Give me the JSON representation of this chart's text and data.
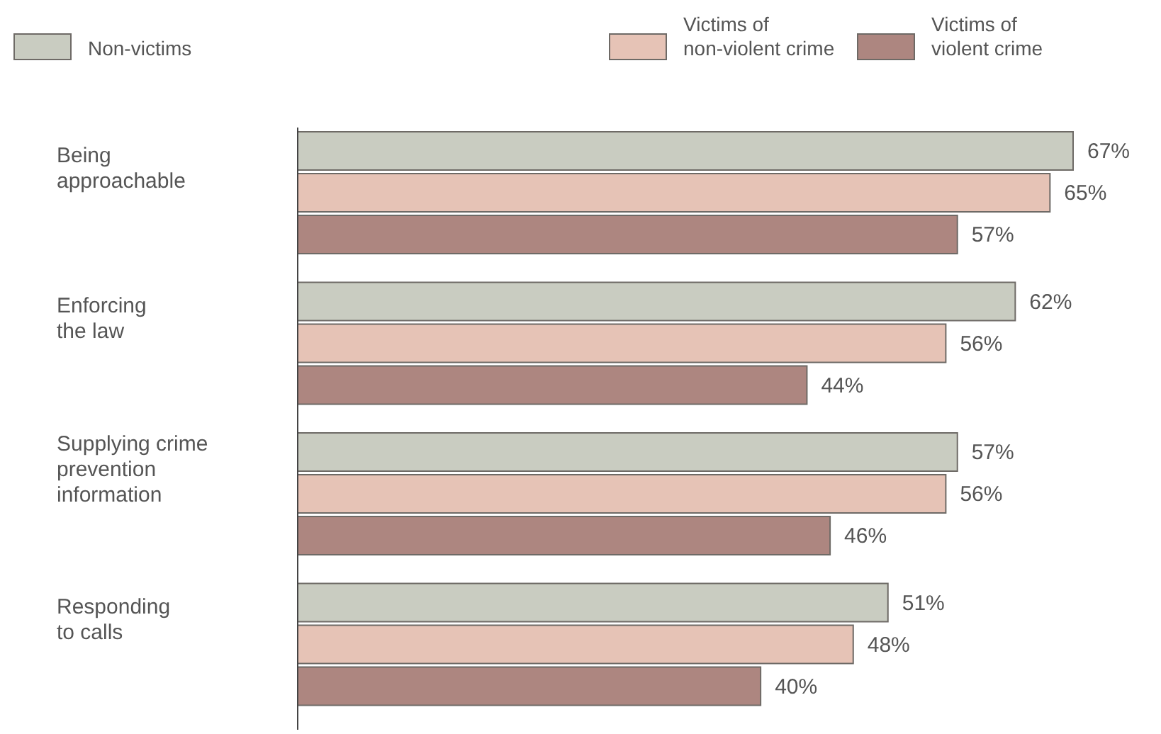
{
  "chart_data": {
    "type": "bar",
    "orientation": "horizontal",
    "categories": [
      "Being\napproachable",
      "Enforcing\nthe law",
      "Supplying crime\nprevention\ninformation",
      "Responding\nto calls"
    ],
    "series": [
      {
        "name": "Non-victims",
        "color": "#c9ccc1",
        "values": [
          67,
          62,
          57,
          51
        ],
        "value_labels": [
          "67%",
          "62%",
          "57%",
          "51%"
        ]
      },
      {
        "name": "Victims of\nnon-violent crime",
        "color": "#e6c3b6",
        "values": [
          65,
          56,
          56,
          48
        ],
        "value_labels": [
          "65%",
          "56%",
          "56%",
          "48%"
        ]
      },
      {
        "name": "Victims of\nviolent crime",
        "color": "#ad8680",
        "values": [
          57,
          44,
          46,
          40
        ],
        "value_labels": [
          "57%",
          "44%",
          "46%",
          "40%"
        ]
      }
    ],
    "legend": "top"
  }
}
